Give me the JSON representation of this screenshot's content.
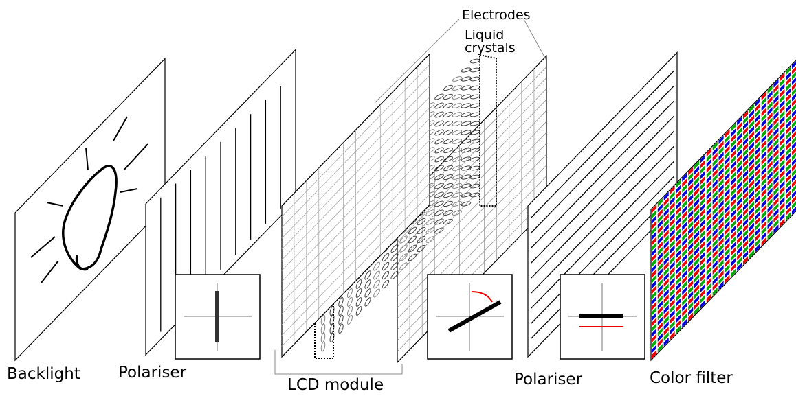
{
  "labels": {
    "electrodes": "Electrodes",
    "liquid_crystals": [
      "Liquid",
      "crystals"
    ],
    "backlight": "Backlight",
    "polariser_1": "Polariser",
    "lcd_module": "LCD module",
    "polariser_2": "Polariser",
    "color_filter": "Color filter"
  }
}
